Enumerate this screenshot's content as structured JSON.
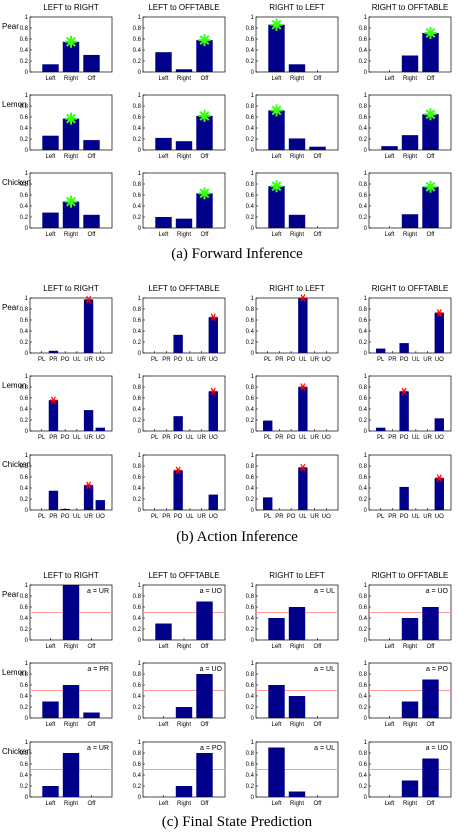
{
  "colors": {
    "bar": "#00008B",
    "green_star": "#39FF14",
    "red_star": "#FF0000",
    "threshold_line": "#FF9999"
  },
  "chart_data": [
    {
      "type": "bar",
      "caption": "(a) Forward Inference",
      "columns": [
        "LEFT to RIGHT",
        "LEFT to OFFTABLE",
        "RIGHT to LEFT",
        "RIGHT to OFFTABLE"
      ],
      "rows": [
        "Pear",
        "Lemon",
        "Chicken"
      ],
      "categories": [
        "Left",
        "Right",
        "Off"
      ],
      "yticks": [
        "0",
        "0.2",
        "0.4",
        "0.6",
        "0.8",
        "1"
      ],
      "ylim": [
        0,
        1
      ],
      "marker": "green-star",
      "panels": [
        [
          {
            "values": [
              0.14,
              0.55,
              0.31
            ],
            "star": 1
          },
          {
            "values": [
              0.36,
              0.05,
              0.58
            ],
            "star": 2
          },
          {
            "values": [
              0.86,
              0.14,
              0.0
            ],
            "star": 0
          },
          {
            "values": [
              0.0,
              0.3,
              0.71
            ],
            "star": 2
          }
        ],
        [
          {
            "values": [
              0.26,
              0.57,
              0.18
            ],
            "star": 1
          },
          {
            "values": [
              0.22,
              0.16,
              0.62
            ],
            "star": 2
          },
          {
            "values": [
              0.72,
              0.21,
              0.06
            ],
            "star": 0
          },
          {
            "values": [
              0.07,
              0.27,
              0.65
            ],
            "star": 2
          }
        ],
        [
          {
            "values": [
              0.28,
              0.48,
              0.24
            ],
            "star": 1
          },
          {
            "values": [
              0.2,
              0.17,
              0.63
            ],
            "star": 2
          },
          {
            "values": [
              0.76,
              0.24,
              0.0
            ],
            "star": 0
          },
          {
            "values": [
              0.0,
              0.25,
              0.75
            ],
            "star": 2
          }
        ]
      ]
    },
    {
      "type": "bar",
      "caption": "(b) Action Inference",
      "columns": [
        "LEFT to RIGHT",
        "LEFT to OFFTABLE",
        "RIGHT to LEFT",
        "RIGHT to OFFTABLE"
      ],
      "rows": [
        "Pear",
        "Lemon",
        "Chicken"
      ],
      "categories": [
        "PL",
        "PR",
        "PO",
        "UL",
        "UR",
        "UO"
      ],
      "yticks": [
        "0",
        "0.2",
        "0.4",
        "0.6",
        "0.8",
        "1"
      ],
      "ylim": [
        0,
        1
      ],
      "marker": "red-star",
      "panels": [
        [
          {
            "values": [
              0.0,
              0.04,
              0.0,
              0.0,
              0.97,
              0.0
            ],
            "star": 4
          },
          {
            "values": [
              0.0,
              0.0,
              0.33,
              0.0,
              0.0,
              0.65
            ],
            "star": 5
          },
          {
            "values": [
              0.0,
              0.0,
              0.0,
              1.0,
              0.0,
              0.0
            ],
            "star": 3
          },
          {
            "values": [
              0.08,
              0.0,
              0.18,
              0.0,
              0.0,
              0.73
            ],
            "star": 5
          }
        ],
        [
          {
            "values": [
              0.0,
              0.56,
              0.0,
              0.0,
              0.38,
              0.06
            ],
            "star": 1
          },
          {
            "values": [
              0.0,
              0.0,
              0.27,
              0.0,
              0.0,
              0.72
            ],
            "star": 5
          },
          {
            "values": [
              0.19,
              0.0,
              0.0,
              0.8,
              0.0,
              0.0
            ],
            "star": 3
          },
          {
            "values": [
              0.06,
              0.0,
              0.72,
              0.0,
              0.0,
              0.23
            ],
            "star": 2
          }
        ],
        [
          {
            "values": [
              0.0,
              0.35,
              0.02,
              0.0,
              0.45,
              0.18
            ],
            "star": 4
          },
          {
            "values": [
              0.0,
              0.0,
              0.72,
              0.0,
              0.0,
              0.28
            ],
            "star": 2
          },
          {
            "values": [
              0.23,
              0.0,
              0.0,
              0.77,
              0.0,
              0.0
            ],
            "star": 3
          },
          {
            "values": [
              0.0,
              0.0,
              0.42,
              0.0,
              0.0,
              0.58
            ],
            "star": 5
          }
        ]
      ]
    },
    {
      "type": "bar",
      "caption": "(c) Final State Prediction",
      "columns": [
        "LEFT to RIGHT",
        "LEFT to OFFTABLE",
        "RIGHT to LEFT",
        "RIGHT to OFFTABLE"
      ],
      "rows": [
        "Pear",
        "Lemon",
        "Chicken"
      ],
      "categories": [
        "Left",
        "Right",
        "Off"
      ],
      "yticks": [
        "0",
        "0.2",
        "0.4",
        "0.6",
        "0.8",
        "1"
      ],
      "ylim": [
        0,
        1
      ],
      "threshold": 0.5,
      "panels": [
        [
          {
            "values": [
              0.0,
              1.0,
              0.0
            ],
            "annotation": "a = UR"
          },
          {
            "values": [
              0.3,
              0.0,
              0.7
            ],
            "annotation": "a = UO"
          },
          {
            "values": [
              0.4,
              0.6,
              0.0
            ],
            "annotation": "a = UL"
          },
          {
            "values": [
              0.0,
              0.4,
              0.6
            ],
            "annotation": "a = UO"
          }
        ],
        [
          {
            "values": [
              0.3,
              0.6,
              0.1
            ],
            "annotation": "a = PR"
          },
          {
            "values": [
              0.0,
              0.2,
              0.8
            ],
            "annotation": "a = UO"
          },
          {
            "values": [
              0.6,
              0.4,
              0.0
            ],
            "annotation": "a = UL"
          },
          {
            "values": [
              0.0,
              0.3,
              0.7
            ],
            "annotation": "a = PO"
          }
        ],
        [
          {
            "values": [
              0.2,
              0.8,
              0.0
            ],
            "annotation": "a = UR"
          },
          {
            "values": [
              0.0,
              0.2,
              0.8
            ],
            "annotation": "a = PO"
          },
          {
            "values": [
              0.9,
              0.1,
              0.0
            ],
            "annotation": "a = UL"
          },
          {
            "values": [
              0.0,
              0.3,
              0.7
            ],
            "annotation": "a = UO"
          }
        ]
      ]
    }
  ]
}
